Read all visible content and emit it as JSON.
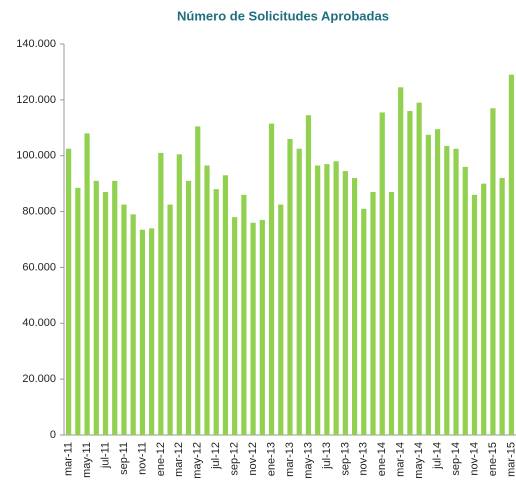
{
  "chart_data": {
    "type": "bar",
    "title": "Número de Solicitudes Aprobadas",
    "categories": [
      "mar-11",
      null,
      "may-11",
      null,
      "jul-11",
      null,
      "sep-11",
      null,
      "nov-11",
      null,
      "ene-12",
      null,
      "mar-12",
      null,
      "may-12",
      null,
      "jul-12",
      null,
      "sep-12",
      null,
      "nov-12",
      null,
      "ene-13",
      null,
      "mar-13",
      null,
      "may-13",
      null,
      "jul-13",
      null,
      "sep-13",
      null,
      "nov-13",
      null,
      "ene-14",
      null,
      "mar-14",
      null,
      "may-14",
      null,
      "jul-14",
      null,
      "sep-14",
      null,
      "nov-14",
      null,
      "ene-15",
      null,
      "mar-15"
    ],
    "values": [
      102500,
      88500,
      108000,
      91000,
      87000,
      91000,
      82500,
      79000,
      73500,
      74000,
      101000,
      82500,
      100500,
      91000,
      110500,
      96500,
      88000,
      93000,
      78000,
      86000,
      76000,
      77000,
      111500,
      82500,
      106000,
      102500,
      114500,
      96500,
      97000,
      98000,
      94500,
      92000,
      81000,
      87000,
      115500,
      87000,
      124500,
      116000,
      119000,
      107500,
      109500,
      103500,
      102500,
      96000,
      86000,
      90000,
      117000,
      92000,
      129000
    ],
    "color": "#92d050",
    "ylim": [
      0,
      140000
    ],
    "yticks": [
      0,
      {
        "value": 20000,
        "label": "20.000"
      },
      {
        "value": 40000,
        "label": "40.000"
      },
      {
        "value": 60000,
        "label": "60.000"
      },
      {
        "value": 80000,
        "label": "80.000"
      },
      {
        "value": 100000,
        "label": "100.000"
      },
      {
        "value": 120000,
        "label": "120.000"
      },
      {
        "value": 140000,
        "label": "140.000"
      }
    ],
    "grid": false
  }
}
